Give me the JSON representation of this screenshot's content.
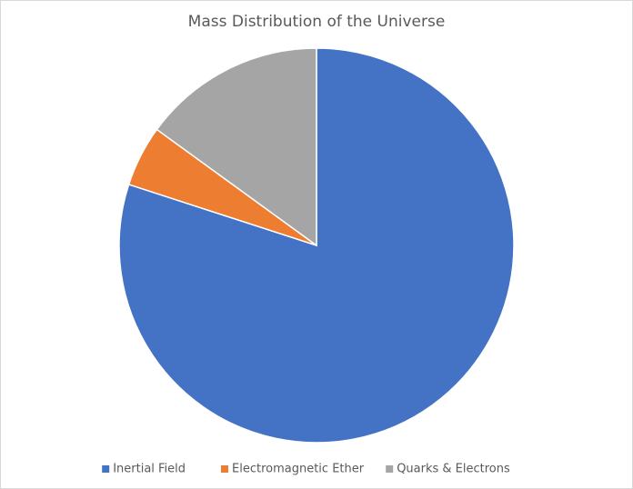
{
  "chart_data": {
    "type": "pie",
    "title": "Mass Distribution of the Universe",
    "categories": [
      "Inertial Field",
      "Electromagnetic Ether",
      "Quarks & Electrons"
    ],
    "values": [
      80,
      5,
      15
    ],
    "colors": [
      "#4472c4",
      "#ed7d31",
      "#a5a5a5"
    ],
    "legend": "bottom"
  }
}
